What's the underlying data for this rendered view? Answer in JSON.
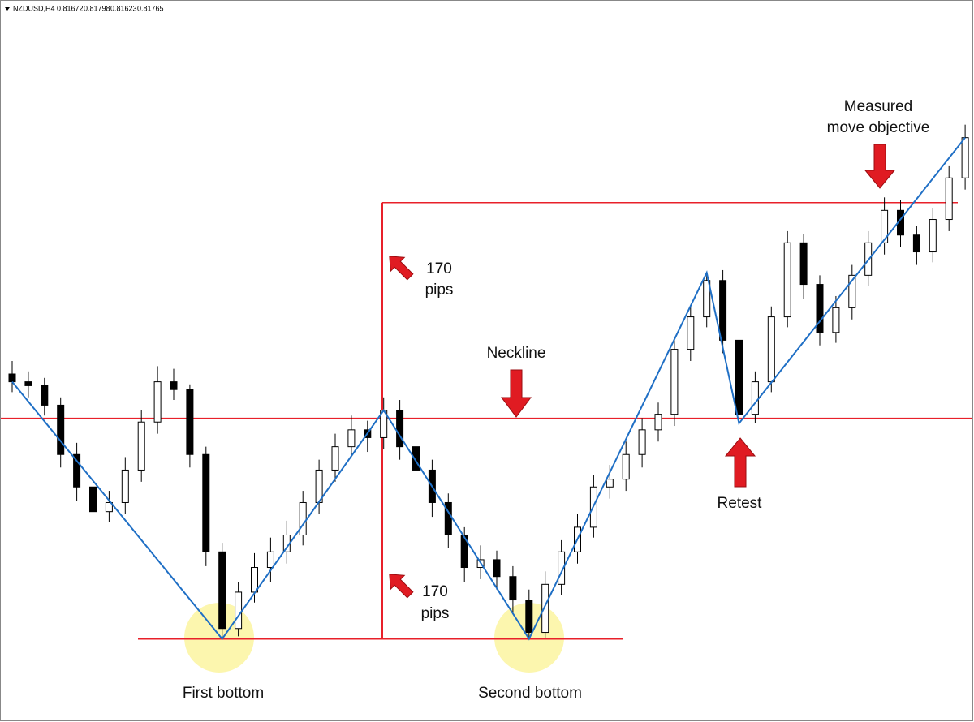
{
  "chart_data": {
    "type": "candlestick",
    "header": {
      "symbol": "NZDUSD,H4",
      "quote": [
        0.81672,
        0.81798,
        0.81623,
        0.81765
      ]
    },
    "ylim": [
      0.773,
      0.8286
    ],
    "up_color": "#ffffff",
    "down_color": "#000000",
    "candles": [
      [
        0.7998,
        0.8008,
        0.7984,
        0.7992
      ],
      [
        0.7992,
        0.8,
        0.798,
        0.7989
      ],
      [
        0.7989,
        0.7995,
        0.7966,
        0.7974
      ],
      [
        0.7974,
        0.798,
        0.7926,
        0.7936
      ],
      [
        0.7936,
        0.7945,
        0.79,
        0.7911
      ],
      [
        0.7911,
        0.7918,
        0.788,
        0.7892
      ],
      [
        0.7892,
        0.7908,
        0.7884,
        0.7899
      ],
      [
        0.7899,
        0.7934,
        0.789,
        0.7924
      ],
      [
        0.7924,
        0.797,
        0.7915,
        0.7961
      ],
      [
        0.7961,
        0.8004,
        0.7952,
        0.7992
      ],
      [
        0.7992,
        0.8002,
        0.7978,
        0.7986
      ],
      [
        0.7986,
        0.799,
        0.7926,
        0.7936
      ],
      [
        0.7936,
        0.7942,
        0.785,
        0.7861
      ],
      [
        0.7861,
        0.7868,
        0.7794,
        0.7802
      ],
      [
        0.7802,
        0.7838,
        0.7796,
        0.783
      ],
      [
        0.783,
        0.786,
        0.7822,
        0.7849
      ],
      [
        0.7849,
        0.7872,
        0.7838,
        0.7861
      ],
      [
        0.7861,
        0.7885,
        0.7852,
        0.7874
      ],
      [
        0.7874,
        0.7908,
        0.7866,
        0.7899
      ],
      [
        0.7899,
        0.7932,
        0.789,
        0.7924
      ],
      [
        0.7924,
        0.7952,
        0.7915,
        0.7942
      ],
      [
        0.7942,
        0.7966,
        0.7934,
        0.7955
      ],
      [
        0.7955,
        0.7962,
        0.7938,
        0.7949
      ],
      [
        0.7949,
        0.798,
        0.794,
        0.797
      ],
      [
        0.797,
        0.7978,
        0.7932,
        0.7942
      ],
      [
        0.7942,
        0.795,
        0.7914,
        0.7924
      ],
      [
        0.7924,
        0.7932,
        0.7888,
        0.7899
      ],
      [
        0.7899,
        0.7906,
        0.7864,
        0.7874
      ],
      [
        0.7874,
        0.788,
        0.7838,
        0.7849
      ],
      [
        0.7849,
        0.7866,
        0.784,
        0.7855
      ],
      [
        0.7855,
        0.7862,
        0.7832,
        0.7842
      ],
      [
        0.7842,
        0.785,
        0.7814,
        0.7824
      ],
      [
        0.7824,
        0.7832,
        0.7794,
        0.7799
      ],
      [
        0.7799,
        0.7846,
        0.7795,
        0.7836
      ],
      [
        0.7836,
        0.787,
        0.7828,
        0.7861
      ],
      [
        0.7861,
        0.789,
        0.7852,
        0.788
      ],
      [
        0.788,
        0.792,
        0.7872,
        0.7911
      ],
      [
        0.7911,
        0.7928,
        0.7902,
        0.7917
      ],
      [
        0.7917,
        0.7946,
        0.7908,
        0.7936
      ],
      [
        0.7936,
        0.7964,
        0.7926,
        0.7955
      ],
      [
        0.7955,
        0.7976,
        0.7946,
        0.7967
      ],
      [
        0.7967,
        0.8026,
        0.7958,
        0.8017
      ],
      [
        0.8017,
        0.805,
        0.8008,
        0.8042
      ],
      [
        0.8042,
        0.8076,
        0.8034,
        0.807
      ],
      [
        0.807,
        0.8078,
        0.8014,
        0.8024
      ],
      [
        0.8024,
        0.803,
        0.7958,
        0.7967
      ],
      [
        0.7967,
        0.8,
        0.796,
        0.7992
      ],
      [
        0.7992,
        0.805,
        0.7984,
        0.8042
      ],
      [
        0.8042,
        0.8108,
        0.8034,
        0.8099
      ],
      [
        0.8099,
        0.8106,
        0.8056,
        0.8067
      ],
      [
        0.8067,
        0.8074,
        0.802,
        0.803
      ],
      [
        0.803,
        0.8058,
        0.8022,
        0.8049
      ],
      [
        0.8049,
        0.8082,
        0.804,
        0.8074
      ],
      [
        0.8074,
        0.8108,
        0.8066,
        0.8099
      ],
      [
        0.8099,
        0.8134,
        0.809,
        0.8124
      ],
      [
        0.8124,
        0.8132,
        0.8096,
        0.8105
      ],
      [
        0.8105,
        0.8112,
        0.8082,
        0.8092
      ],
      [
        0.8092,
        0.8126,
        0.8084,
        0.8117
      ],
      [
        0.8117,
        0.8158,
        0.8108,
        0.8149
      ],
      [
        0.8149,
        0.819,
        0.814,
        0.818
      ]
    ],
    "zigzag": {
      "color": "#1f6fc5",
      "x": [
        0,
        13,
        23,
        32,
        43,
        45,
        59
      ],
      "values": [
        0.7992,
        0.7794,
        0.797,
        0.7794,
        0.8076,
        0.796,
        0.818
      ]
    },
    "levels": {
      "color": "#e8202a",
      "neckline": 0.7964,
      "support": 0.7794,
      "target": 0.813
    },
    "annotations": {
      "measured": [
        "Measured",
        "move objective"
      ],
      "pips_upper": [
        "170",
        "pips"
      ],
      "pips_lower": [
        "170",
        "pips"
      ],
      "neckline": "Neckline",
      "retest": "Retest",
      "first_bottom": "First bottom",
      "second_bottom": "Second bottom"
    }
  }
}
